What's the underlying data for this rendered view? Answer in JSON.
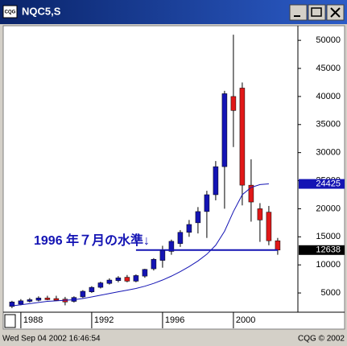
{
  "window_title": "NQC5,S",
  "icon_label": "CQG",
  "status_left": "Wed Sep 04 2002 16:46:54",
  "status_right": "CQG © 2002",
  "chart_data": {
    "type": "candlestick",
    "x": [
      1987.5,
      1988,
      1988.5,
      1989,
      1989.5,
      1990,
      1990.5,
      1991,
      1991.5,
      1992,
      1992.5,
      1993,
      1993.5,
      1994,
      1994.5,
      1995,
      1995.5,
      1996,
      1996.5,
      1997,
      1997.5,
      1998,
      1998.5,
      1999,
      1999.5,
      2000,
      2000.5,
      2001,
      2001.5,
      2002,
      2002.5
    ],
    "open": [
      2600,
      3000,
      3500,
      3700,
      4100,
      4000,
      3900,
      3500,
      4300,
      5200,
      6000,
      6700,
      7200,
      7800,
      7100,
      8000,
      9300,
      10800,
      12400,
      13800,
      15800,
      17500,
      19500,
      22500,
      27500,
      40000,
      41500,
      24200,
      20000,
      19400,
      14300
    ],
    "high": [
      3600,
      3900,
      4100,
      4400,
      4500,
      4500,
      4300,
      4400,
      5500,
      6200,
      7000,
      7600,
      8000,
      8200,
      8300,
      9300,
      11200,
      13400,
      14500,
      16200,
      18000,
      20300,
      23200,
      28500,
      41000,
      51000,
      42500,
      28800,
      21000,
      20500,
      14800
    ],
    "low": [
      2300,
      2800,
      3300,
      3500,
      3700,
      3600,
      2800,
      3300,
      4100,
      5000,
      5800,
      6500,
      6900,
      6900,
      6900,
      7700,
      9000,
      9500,
      11800,
      13200,
      15000,
      15600,
      14800,
      21500,
      20000,
      31000,
      20600,
      17700,
      14100,
      13500,
      11800
    ],
    "close": [
      3400,
      3600,
      3800,
      4100,
      3800,
      3700,
      3400,
      4200,
      5300,
      6000,
      6800,
      7300,
      7700,
      7100,
      8100,
      9200,
      11000,
      12500,
      14200,
      15800,
      17200,
      19500,
      22500,
      27500,
      40500,
      37500,
      24200,
      21200,
      18000,
      14300,
      12638
    ],
    "up_color": "#1414b4",
    "down_color": "#e01818",
    "ma": {
      "color": "#1414b4",
      "values": [
        2700,
        2900,
        3100,
        3300,
        3500,
        3600,
        3700,
        3800,
        4000,
        4300,
        4600,
        4900,
        5200,
        5500,
        5800,
        6200,
        6700,
        7300,
        8000,
        8800,
        9700,
        10700,
        11900,
        13500,
        16000,
        19500,
        22500,
        23800,
        24300,
        24425,
        null
      ]
    },
    "level": {
      "value": 12638,
      "x": [
        1994.5,
        2002.5
      ],
      "color": "#1414b4"
    },
    "annotation": "1996 年７月の水準↓",
    "xlim": [
      1987.05,
      2003.64
    ],
    "xticks": [
      1988,
      1992,
      1996,
      2000
    ],
    "ylim": [
      2000,
      52600
    ],
    "yticks": [
      5000,
      10000,
      15000,
      20000,
      25000,
      30000,
      35000,
      40000,
      45000,
      50000
    ]
  }
}
